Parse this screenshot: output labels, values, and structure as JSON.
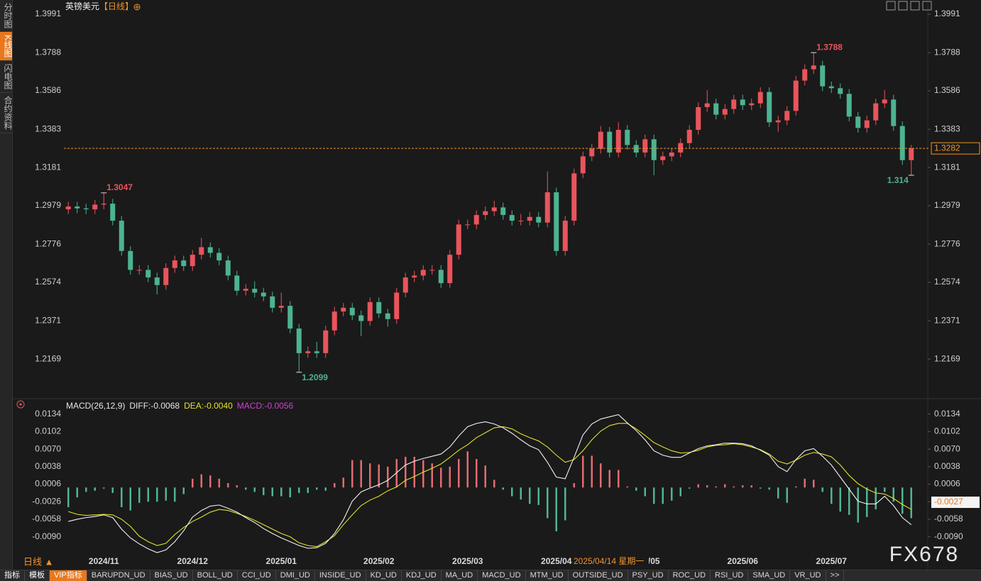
{
  "ui": {
    "side_tabs": [
      "分时图",
      "K线图",
      "闪电图",
      "合约资料"
    ],
    "period": "日线 ▲",
    "crosshair_date": "2025/04/14 星期一",
    "watermark": "FX678",
    "toolbar": [
      "指标",
      "模板",
      "VIP指标",
      "BARUPDN_UD",
      "BIAS_UD",
      "BOLL_UD",
      "CCI_UD",
      "DMI_UD",
      "INSIDE_UD",
      "KD_UD",
      "KDJ_UD",
      "MA_UD",
      "MACD_UD",
      "MTM_UD",
      "OUTSIDE_UD",
      "PSY_UD",
      "ROC_UD",
      "RSI_UD",
      "SMA_UD",
      "VR_UD",
      ">>"
    ]
  },
  "chart_data": [
    {
      "type": "candlestick",
      "title": "英镑美元",
      "period": "【日线】",
      "categories": [
        null,
        null,
        null,
        null,
        "2024/11",
        null,
        null,
        null,
        null,
        null,
        null,
        null,
        null,
        null,
        "2024/12",
        null,
        null,
        null,
        null,
        null,
        null,
        null,
        null,
        null,
        "2025/01",
        null,
        null,
        null,
        null,
        null,
        null,
        null,
        null,
        null,
        null,
        "2025/02",
        null,
        null,
        null,
        null,
        null,
        null,
        null,
        null,
        null,
        "2025/03",
        null,
        null,
        null,
        null,
        null,
        null,
        null,
        null,
        null,
        "2025/04",
        null,
        null,
        null,
        null,
        null,
        null,
        null,
        null,
        null,
        null,
        "/05",
        null,
        null,
        null,
        null,
        null,
        null,
        null,
        null,
        null,
        "2025/06",
        null,
        null,
        null,
        null,
        null,
        null,
        null,
        null,
        null,
        "2025/07",
        null,
        null,
        null,
        null,
        null,
        null,
        null,
        null,
        null
      ],
      "open": [
        1.296,
        1.2975,
        1.2965,
        1.296,
        1.2985,
        1.299,
        1.29,
        1.274,
        1.264,
        1.264,
        1.26,
        1.256,
        1.265,
        1.269,
        1.266,
        1.272,
        1.276,
        1.273,
        1.269,
        1.261,
        1.253,
        1.254,
        1.252,
        1.25,
        1.244,
        1.245,
        1.233,
        1.22,
        1.221,
        1.22,
        1.232,
        1.242,
        1.244,
        1.24,
        1.237,
        1.247,
        1.241,
        1.238,
        1.252,
        1.26,
        1.261,
        1.264,
        1.264,
        1.257,
        1.272,
        1.288,
        1.288,
        1.293,
        1.295,
        1.297,
        1.293,
        1.29,
        1.29,
        1.292,
        1.289,
        1.305,
        1.274,
        1.29,
        1.315,
        1.324,
        1.328,
        1.337,
        1.326,
        1.338,
        1.33,
        1.326,
        1.333,
        1.322,
        1.324,
        1.326,
        1.331,
        1.338,
        1.35,
        1.352,
        1.346,
        1.349,
        1.354,
        1.351,
        1.352,
        1.358,
        1.342,
        1.343,
        1.348,
        1.364,
        1.37,
        1.372,
        1.361,
        1.36,
        1.357,
        1.345,
        1.339,
        1.343,
        1.352,
        1.354,
        1.34,
        1.322
      ],
      "high": [
        1.3,
        1.3,
        1.299,
        1.301,
        1.3047,
        1.3015,
        1.2925,
        1.2765,
        1.2665,
        1.2665,
        1.2625,
        1.2675,
        1.2715,
        1.2715,
        1.2745,
        1.281,
        1.2785,
        1.2755,
        1.2715,
        1.2635,
        1.2565,
        1.258,
        1.2545,
        1.2525,
        1.252,
        1.2475,
        1.2355,
        1.2235,
        1.226,
        1.2345,
        1.2445,
        1.2465,
        1.2465,
        1.2425,
        1.2495,
        1.2495,
        1.2435,
        1.2545,
        1.2625,
        1.2635,
        1.2665,
        1.2665,
        1.2665,
        1.2745,
        1.2905,
        1.2905,
        1.2955,
        1.2975,
        1.3005,
        1.2995,
        1.2955,
        1.2935,
        1.2945,
        1.2945,
        1.316,
        1.3075,
        1.2925,
        1.3175,
        1.3265,
        1.3305,
        1.34,
        1.3395,
        1.342,
        1.3405,
        1.3325,
        1.3355,
        1.3355,
        1.3265,
        1.3285,
        1.3335,
        1.3405,
        1.3525,
        1.359,
        1.3545,
        1.3515,
        1.3565,
        1.3565,
        1.3545,
        1.3605,
        1.3605,
        1.3455,
        1.3505,
        1.3665,
        1.3725,
        1.3788,
        1.3745,
        1.3635,
        1.3625,
        1.3595,
        1.3475,
        1.3455,
        1.3545,
        1.359,
        1.3565,
        1.3425,
        1.33
      ],
      "low": [
        1.2935,
        1.294,
        1.2935,
        1.2935,
        1.296,
        1.2875,
        1.2715,
        1.2615,
        1.2615,
        1.2575,
        1.251,
        1.2535,
        1.2625,
        1.2635,
        1.2635,
        1.2695,
        1.2705,
        1.2665,
        1.2585,
        1.2505,
        1.2505,
        1.2495,
        1.2475,
        1.2415,
        1.2415,
        1.2305,
        1.2099,
        1.2175,
        1.2175,
        1.2175,
        1.2295,
        1.2395,
        1.2375,
        1.229,
        1.2345,
        1.2385,
        1.234,
        1.2355,
        1.2495,
        1.2575,
        1.2585,
        1.2615,
        1.2545,
        1.2545,
        1.2695,
        1.2855,
        1.2855,
        1.2905,
        1.2925,
        1.2905,
        1.2875,
        1.2875,
        1.2875,
        1.2865,
        1.2865,
        1.2715,
        1.2715,
        1.2875,
        1.3125,
        1.3215,
        1.3255,
        1.3235,
        1.3235,
        1.3275,
        1.3235,
        1.3235,
        1.314,
        1.3195,
        1.3215,
        1.3235,
        1.3285,
        1.3355,
        1.3475,
        1.3435,
        1.3435,
        1.3465,
        1.3485,
        1.3485,
        1.3495,
        1.3395,
        1.337,
        1.3405,
        1.3455,
        1.3615,
        1.3675,
        1.3585,
        1.3575,
        1.3545,
        1.3425,
        1.3365,
        1.3365,
        1.3405,
        1.3495,
        1.3375,
        1.3195,
        1.314
      ],
      "close": [
        1.2975,
        1.2965,
        1.296,
        1.2985,
        1.299,
        1.29,
        1.274,
        1.264,
        1.264,
        1.26,
        1.256,
        1.265,
        1.269,
        1.266,
        1.272,
        1.276,
        1.273,
        1.269,
        1.261,
        1.253,
        1.254,
        1.252,
        1.25,
        1.244,
        1.245,
        1.233,
        1.22,
        1.221,
        1.22,
        1.232,
        1.242,
        1.244,
        1.24,
        1.237,
        1.247,
        1.241,
        1.238,
        1.252,
        1.26,
        1.261,
        1.264,
        1.264,
        1.257,
        1.272,
        1.288,
        1.288,
        1.293,
        1.295,
        1.297,
        1.293,
        1.29,
        1.29,
        1.292,
        1.289,
        1.305,
        1.274,
        1.29,
        1.315,
        1.324,
        1.328,
        1.337,
        1.326,
        1.338,
        1.33,
        1.326,
        1.333,
        1.322,
        1.324,
        1.326,
        1.331,
        1.338,
        1.35,
        1.352,
        1.346,
        1.349,
        1.354,
        1.351,
        1.352,
        1.358,
        1.342,
        1.343,
        1.348,
        1.364,
        1.37,
        1.372,
        1.361,
        1.36,
        1.357,
        1.345,
        1.339,
        1.343,
        1.352,
        1.354,
        1.34,
        1.322,
        1.3282
      ],
      "up_color": "#e9545c",
      "down_color": "#4db390",
      "last_price_color": "#f0932b",
      "ylim": [
        1.1967,
        1.4036
      ],
      "yticks": [
        1.2169,
        1.2371,
        1.2574,
        1.2776,
        1.2979,
        1.3181,
        1.3383,
        1.3586,
        1.3788,
        1.3991
      ],
      "grid": false
    },
    {
      "type": "macd",
      "title": "MACD(26,12,9)",
      "series": [
        {
          "legend": "DIFF:-0.0068",
          "color": "#f2f2f2",
          "legend_color": "#e6e6e6",
          "values": [
            -0.0062,
            -0.0058,
            -0.0055,
            -0.0053,
            -0.005,
            -0.0055,
            -0.0076,
            -0.0092,
            -0.0103,
            -0.0112,
            -0.0119,
            -0.0114,
            -0.0099,
            -0.0079,
            -0.0054,
            -0.0042,
            -0.0034,
            -0.0032,
            -0.0038,
            -0.0045,
            -0.0055,
            -0.0064,
            -0.0075,
            -0.0084,
            -0.0092,
            -0.0099,
            -0.0106,
            -0.0111,
            -0.011,
            -0.0102,
            -0.0084,
            -0.0059,
            -0.0025,
            -0.0008,
            -0.0001,
            0.0005,
            0.0013,
            0.0027,
            0.0041,
            0.0048,
            0.0053,
            0.0057,
            0.0061,
            0.0074,
            0.0094,
            0.0111,
            0.0117,
            0.012,
            0.0116,
            0.0109,
            0.0099,
            0.0087,
            0.0076,
            0.0069,
            0.0046,
            0.0019,
            0.0016,
            0.0055,
            0.0096,
            0.0116,
            0.0125,
            0.0129,
            0.0133,
            0.0118,
            0.0104,
            0.0087,
            0.0067,
            0.0059,
            0.0055,
            0.0055,
            0.0063,
            0.0071,
            0.0076,
            0.0078,
            0.0081,
            0.0081,
            0.008,
            0.0076,
            0.0068,
            0.0059,
            0.0038,
            0.0029,
            0.0051,
            0.0067,
            0.0071,
            0.0057,
            0.0041,
            0.0019,
            -0.0003,
            -0.0025,
            -0.003,
            -0.003,
            -0.0016,
            -0.0033,
            -0.0055,
            -0.0068
          ]
        },
        {
          "legend": "DEA:-0.0040",
          "color": "#e3e12c",
          "legend_color": "#e3e12c",
          "values": [
            -0.0044,
            -0.0049,
            -0.0051,
            -0.005,
            -0.0049,
            -0.005,
            -0.0058,
            -0.0071,
            -0.0089,
            -0.0099,
            -0.0106,
            -0.0102,
            -0.0086,
            -0.0073,
            -0.0062,
            -0.0054,
            -0.0045,
            -0.004,
            -0.0042,
            -0.0047,
            -0.0053,
            -0.006,
            -0.0068,
            -0.0076,
            -0.0084,
            -0.009,
            -0.0101,
            -0.0106,
            -0.0108,
            -0.0099,
            -0.0088,
            -0.0068,
            -0.005,
            -0.0033,
            -0.0023,
            -0.0016,
            -0.0006,
            0.0001,
            0.0013,
            0.002,
            0.0028,
            0.0035,
            0.0043,
            0.0055,
            0.0068,
            0.0078,
            0.0091,
            0.01,
            0.0109,
            0.0111,
            0.0107,
            0.0098,
            0.0091,
            0.0085,
            0.0074,
            0.0059,
            0.0046,
            0.0051,
            0.0067,
            0.0087,
            0.0103,
            0.0113,
            0.0117,
            0.0117,
            0.0107,
            0.0095,
            0.0082,
            0.0074,
            0.0067,
            0.0063,
            0.0064,
            0.0068,
            0.0074,
            0.0077,
            0.0078,
            0.008,
            0.0078,
            0.0074,
            0.0069,
            0.0061,
            0.0048,
            0.0043,
            0.005,
            0.0059,
            0.0064,
            0.0061,
            0.0056,
            0.0041,
            0.0022,
            0.0007,
            -0.0003,
            -0.001,
            -0.0012,
            -0.002,
            -0.0031,
            -0.004
          ]
        },
        {
          "legend": "MACD:-0.0056",
          "up_color": "#e46b72",
          "down_color": "#4fb592",
          "legend_color": "#d13fd1",
          "values": [
            -0.0036,
            -0.0018,
            -0.0008,
            -0.0006,
            -0.0002,
            -0.001,
            -0.0036,
            -0.0042,
            -0.0028,
            -0.0026,
            -0.0026,
            -0.0024,
            -0.0026,
            -0.0012,
            0.0016,
            0.0024,
            0.0022,
            0.0016,
            0.0008,
            0.0004,
            -0.0004,
            -0.0008,
            -0.0014,
            -0.0016,
            -0.0016,
            -0.0018,
            -0.001,
            -0.001,
            -0.0004,
            -0.0006,
            0.0008,
            0.0018,
            0.005,
            0.005,
            0.0044,
            0.0042,
            0.0038,
            0.0052,
            0.0056,
            0.0056,
            0.005,
            0.0044,
            0.0036,
            0.0038,
            0.0052,
            0.0066,
            0.0052,
            0.004,
            0.0014,
            -0.0004,
            -0.0016,
            -0.0022,
            -0.003,
            -0.0032,
            -0.0056,
            -0.008,
            -0.006,
            0.0008,
            0.0058,
            0.0058,
            0.0044,
            0.0032,
            0.0032,
            0.0002,
            -0.0006,
            -0.0016,
            -0.003,
            -0.003,
            -0.0024,
            -0.0016,
            -0.0002,
            0.0006,
            0.0004,
            0.0002,
            0.0006,
            0.0002,
            0.0004,
            0.0004,
            -0.0002,
            -0.0004,
            -0.002,
            -0.0028,
            0.0002,
            0.0016,
            0.0014,
            -0.0008,
            -0.003,
            -0.0044,
            -0.005,
            -0.0064,
            -0.0054,
            -0.004,
            -0.0008,
            -0.0026,
            -0.0048,
            -0.0056
          ]
        }
      ],
      "ylim": [
        -0.0128,
        0.0144
      ],
      "yticks": [
        {
          "value": -0.009,
          "label": "-0.0090"
        },
        -0.0058,
        -0.0026,
        0.0006,
        0.0038,
        {
          "value": 0.007,
          "label": "0.0070"
        },
        0.0102,
        0.0134
      ],
      "marker": -0.0027,
      "grid": false
    }
  ]
}
